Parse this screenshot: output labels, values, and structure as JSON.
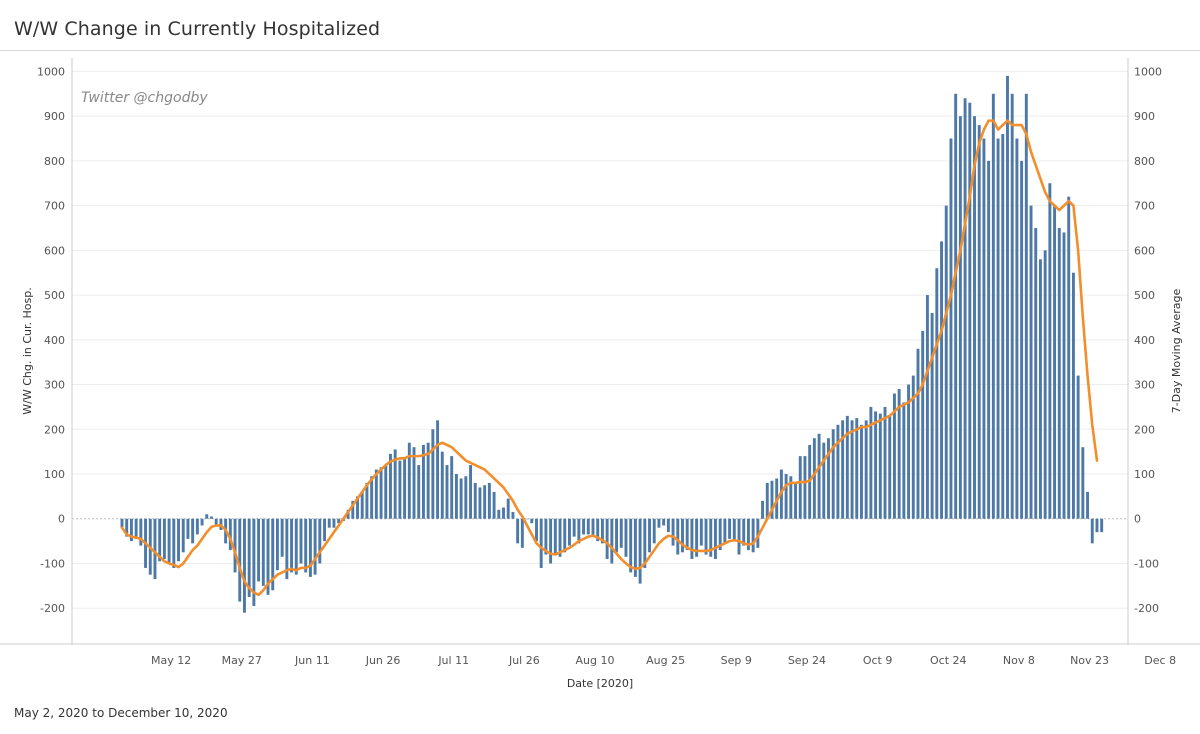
{
  "header": {
    "title": "W/W Change in Currently Hospitalized"
  },
  "footer": {
    "date_range": "May 2, 2020 to December 10, 2020"
  },
  "chart_data": {
    "type": "bar",
    "title": "W/W Change in Currently Hospitalized",
    "watermark": "Twitter @chgodby",
    "xlabel": "Date [2020]",
    "ylabel": "W/W Chg. in Cur. Hosp.",
    "y2label": "7-Day Moving Average",
    "ylim": [
      -280,
      1030
    ],
    "y_ticks": [
      1000,
      900,
      800,
      700,
      600,
      500,
      400,
      300,
      200,
      100,
      0,
      -100,
      -200
    ],
    "x_ticks": [
      "May 12",
      "May 27",
      "Jun 11",
      "Jun 26",
      "Jul 11",
      "Jul 26",
      "Aug 10",
      "Aug 25",
      "Sep 9",
      "Sep 24",
      "Oct 9",
      "Oct 24",
      "Nov 8",
      "Nov 23",
      "Dec 8"
    ],
    "x_tick_day_index": [
      10,
      25,
      40,
      55,
      70,
      85,
      100,
      115,
      130,
      145,
      160,
      175,
      190,
      205,
      220
    ],
    "start_day_index": 0,
    "start_date": "May 2",
    "series": [
      {
        "name": "W/W Chg. in Cur. Hosp.",
        "kind": "bar",
        "color": "#4e79a7",
        "values": [
          -20,
          -40,
          -50,
          -45,
          -60,
          -110,
          -125,
          -135,
          -95,
          -90,
          -100,
          -110,
          -95,
          -75,
          -45,
          -55,
          -35,
          -15,
          10,
          5,
          -15,
          -25,
          -55,
          -70,
          -120,
          -185,
          -210,
          -175,
          -195,
          -140,
          -150,
          -170,
          -160,
          -115,
          -85,
          -135,
          -120,
          -125,
          -100,
          -120,
          -130,
          -125,
          -100,
          -50,
          -20,
          -20,
          -10,
          -5,
          20,
          40,
          50,
          60,
          80,
          95,
          110,
          115,
          120,
          145,
          155,
          130,
          135,
          170,
          160,
          120,
          165,
          170,
          200,
          220,
          150,
          120,
          140,
          100,
          90,
          95,
          120,
          80,
          70,
          75,
          80,
          60,
          20,
          25,
          45,
          15,
          -55,
          -65,
          0,
          -10,
          -50,
          -110,
          -80,
          -100,
          -80,
          -85,
          -75,
          -60,
          -40,
          -55,
          -35,
          -35,
          -40,
          -50,
          -55,
          -90,
          -100,
          -75,
          -65,
          -85,
          -120,
          -130,
          -145,
          -110,
          -75,
          -55,
          -20,
          -15,
          -30,
          -60,
          -80,
          -75,
          -70,
          -90,
          -85,
          -60,
          -80,
          -85,
          -90,
          -70,
          -55,
          -45,
          -50,
          -80,
          -60,
          -70,
          -75,
          -65,
          40,
          80,
          85,
          90,
          110,
          100,
          95,
          80,
          140,
          140,
          165,
          180,
          190,
          170,
          180,
          200,
          210,
          220,
          230,
          220,
          225,
          210,
          220,
          250,
          240,
          235,
          250,
          230,
          280,
          290,
          260,
          300,
          320,
          380,
          420,
          500,
          460,
          560,
          620,
          700,
          850,
          950,
          900,
          940,
          930,
          900,
          880,
          850,
          800,
          950,
          850,
          860,
          990,
          950,
          850,
          800,
          950,
          700,
          650,
          580,
          600,
          750,
          700,
          650,
          640,
          720,
          550,
          320,
          160,
          60,
          -55,
          -30,
          -30
        ]
      },
      {
        "name": "7-Day Moving Average",
        "kind": "line",
        "color": "#f28e2b",
        "values": [
          -20,
          -35,
          -40,
          -42,
          -45,
          -55,
          -65,
          -75,
          -85,
          -95,
          -100,
          -103,
          -108,
          -100,
          -85,
          -70,
          -60,
          -45,
          -30,
          -18,
          -15,
          -15,
          -25,
          -45,
          -75,
          -110,
          -140,
          -155,
          -165,
          -170,
          -160,
          -145,
          -135,
          -125,
          -120,
          -115,
          -112,
          -115,
          -110,
          -110,
          -105,
          -90,
          -75,
          -60,
          -45,
          -30,
          -15,
          0,
          15,
          30,
          45,
          60,
          75,
          88,
          100,
          110,
          120,
          128,
          132,
          135,
          135,
          140,
          140,
          140,
          142,
          145,
          155,
          165,
          170,
          165,
          160,
          150,
          140,
          130,
          125,
          120,
          115,
          110,
          100,
          90,
          80,
          70,
          55,
          40,
          20,
          5,
          -15,
          -35,
          -55,
          -65,
          -72,
          -78,
          -80,
          -75,
          -70,
          -65,
          -58,
          -50,
          -45,
          -40,
          -38,
          -42,
          -48,
          -55,
          -65,
          -78,
          -90,
          -100,
          -108,
          -112,
          -110,
          -100,
          -85,
          -70,
          -55,
          -45,
          -38,
          -40,
          -48,
          -58,
          -65,
          -70,
          -72,
          -72,
          -72,
          -70,
          -65,
          -60,
          -55,
          -50,
          -48,
          -50,
          -55,
          -58,
          -55,
          -40,
          -20,
          0,
          20,
          40,
          60,
          75,
          80,
          80,
          82,
          82,
          85,
          100,
          115,
          130,
          145,
          160,
          170,
          180,
          190,
          195,
          200,
          205,
          205,
          210,
          215,
          220,
          225,
          230,
          240,
          250,
          255,
          260,
          270,
          280,
          300,
          330,
          360,
          390,
          420,
          460,
          500,
          550,
          600,
          660,
          720,
          790,
          840,
          870,
          890,
          890,
          870,
          880,
          890,
          880,
          880,
          880,
          860,
          820,
          790,
          760,
          730,
          710,
          700,
          690,
          700,
          710,
          700,
          600,
          450,
          320,
          210,
          130
        ]
      }
    ]
  }
}
